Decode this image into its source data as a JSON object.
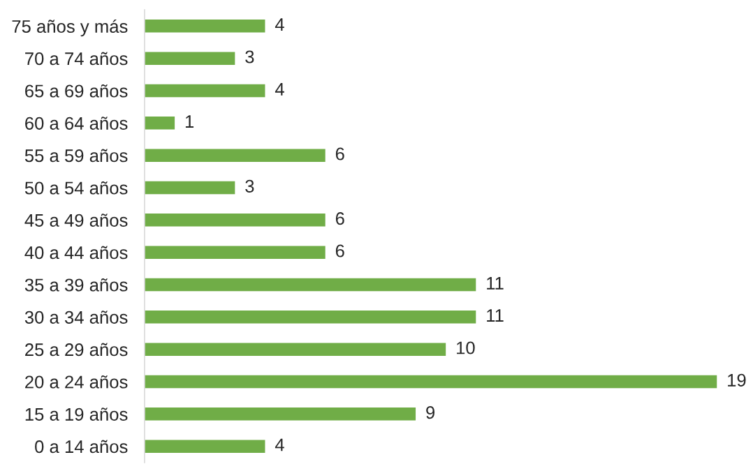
{
  "chart_data": {
    "type": "bar",
    "orientation": "horizontal",
    "categories": [
      "75 años y más",
      "70 a 74 años",
      "65 a 69 años",
      "60 a 64 años",
      "55 a 59 años",
      "50 a 54 años",
      "45 a 49 años",
      "40 a 44 años",
      "35 a 39 años",
      "30 a 34 años",
      "25 a 29 años",
      "20 a 24 años",
      "15 a 19 años",
      "0 a 14 años"
    ],
    "series": [
      {
        "color": "#70ad47",
        "values": [
          4,
          3,
          4,
          1,
          6,
          3,
          6,
          6,
          11,
          11,
          10,
          19,
          9,
          4
        ]
      }
    ],
    "tick_labels": "y",
    "data_labels": true
  }
}
